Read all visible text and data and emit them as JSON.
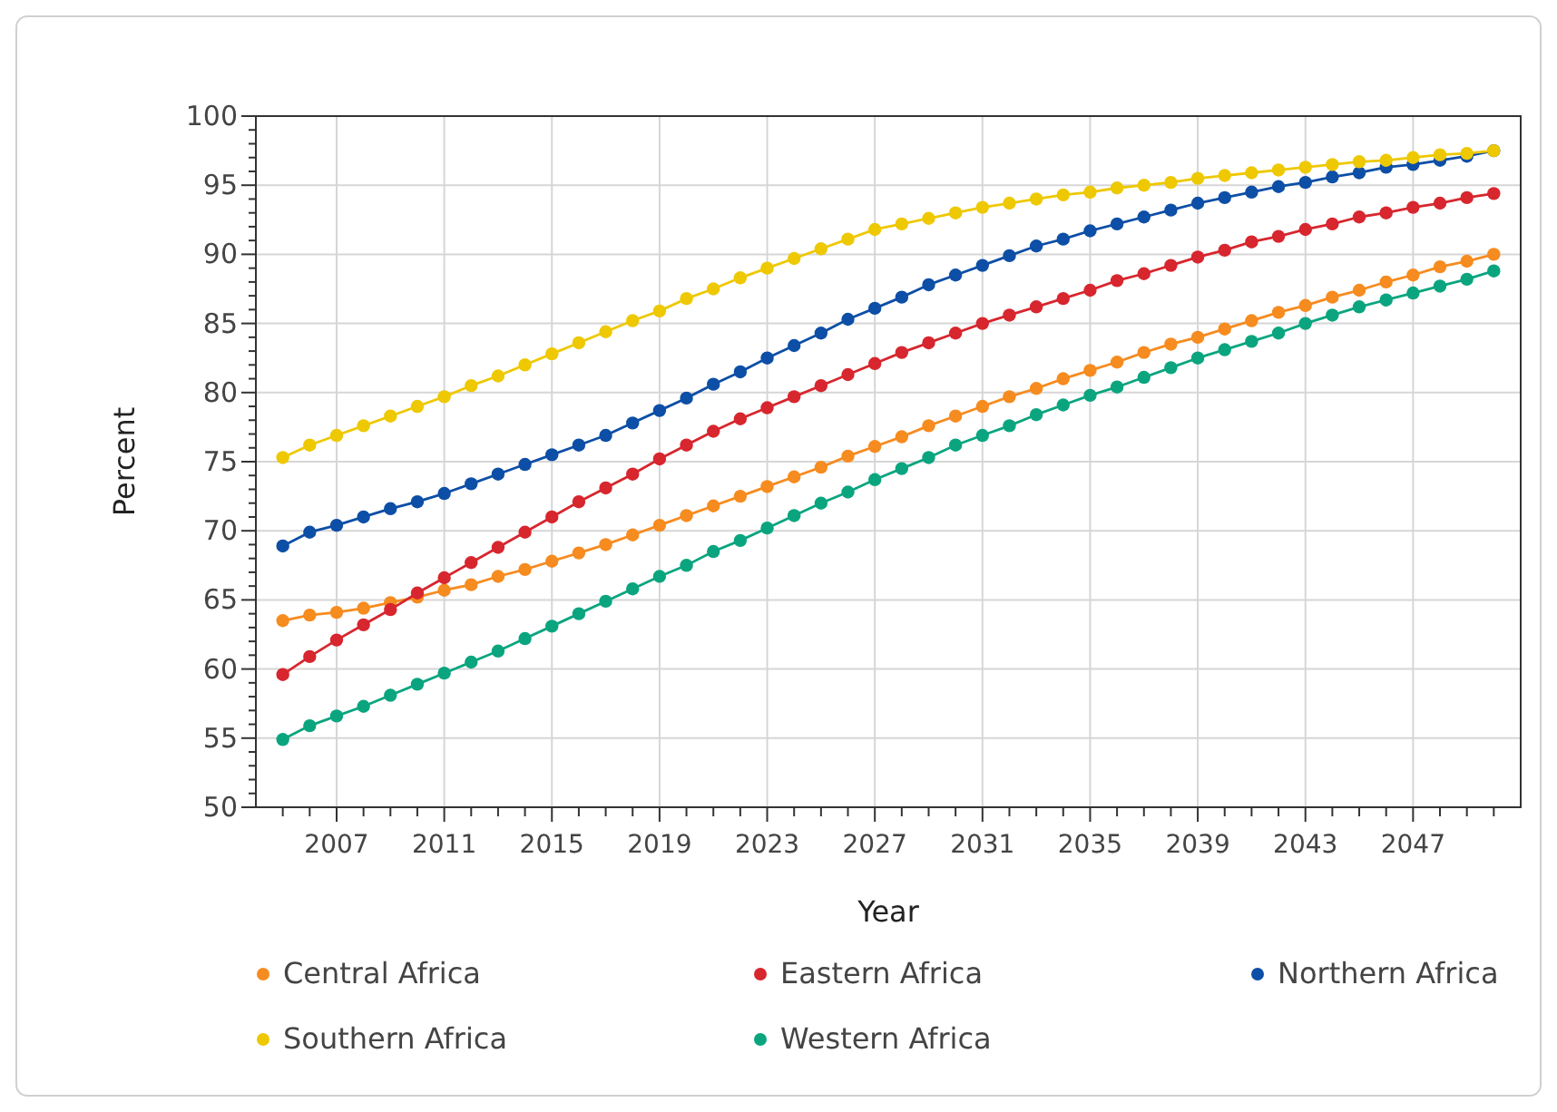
{
  "chart_data": {
    "type": "line",
    "xlabel": "Year",
    "ylabel": "Percent",
    "x": [
      2005,
      2006,
      2007,
      2008,
      2009,
      2010,
      2011,
      2012,
      2013,
      2014,
      2015,
      2016,
      2017,
      2018,
      2019,
      2020,
      2021,
      2022,
      2023,
      2024,
      2025,
      2026,
      2027,
      2028,
      2029,
      2030,
      2031,
      2032,
      2033,
      2034,
      2035,
      2036,
      2037,
      2038,
      2039,
      2040,
      2041,
      2042,
      2043,
      2044,
      2045,
      2046,
      2047,
      2048,
      2049,
      2050
    ],
    "series": [
      {
        "name": "Central Africa",
        "color": "#f68b1f",
        "values": [
          63.5,
          63.9,
          64.1,
          64.4,
          64.8,
          65.2,
          65.7,
          66.1,
          66.7,
          67.2,
          67.8,
          68.4,
          69.0,
          69.7,
          70.4,
          71.1,
          71.8,
          72.5,
          73.2,
          73.9,
          74.6,
          75.4,
          76.1,
          76.8,
          77.6,
          78.3,
          79.0,
          79.7,
          80.3,
          81.0,
          81.6,
          82.2,
          82.9,
          83.5,
          84.0,
          84.6,
          85.2,
          85.8,
          86.3,
          86.9,
          87.4,
          88.0,
          88.5,
          89.1,
          89.5,
          90.0
        ]
      },
      {
        "name": "Eastern Africa",
        "color": "#d7262e",
        "values": [
          59.6,
          60.9,
          62.1,
          63.2,
          64.3,
          65.5,
          66.6,
          67.7,
          68.8,
          69.9,
          71.0,
          72.1,
          73.1,
          74.1,
          75.2,
          76.2,
          77.2,
          78.1,
          78.9,
          79.7,
          80.5,
          81.3,
          82.1,
          82.9,
          83.6,
          84.3,
          85.0,
          85.6,
          86.2,
          86.8,
          87.4,
          88.1,
          88.6,
          89.2,
          89.8,
          90.3,
          90.9,
          91.3,
          91.8,
          92.2,
          92.7,
          93.0,
          93.4,
          93.7,
          94.1,
          94.4
        ]
      },
      {
        "name": "Northern Africa",
        "color": "#0d4ea6",
        "values": [
          68.9,
          69.9,
          70.4,
          71.0,
          71.6,
          72.1,
          72.7,
          73.4,
          74.1,
          74.8,
          75.5,
          76.2,
          76.9,
          77.8,
          78.7,
          79.6,
          80.6,
          81.5,
          82.5,
          83.4,
          84.3,
          85.3,
          86.1,
          86.9,
          87.8,
          88.5,
          89.2,
          89.9,
          90.6,
          91.1,
          91.7,
          92.2,
          92.7,
          93.2,
          93.7,
          94.1,
          94.5,
          94.9,
          95.2,
          95.6,
          95.9,
          96.3,
          96.5,
          96.8,
          97.1,
          97.5
        ]
      },
      {
        "name": "Southern Africa",
        "color": "#eec800",
        "values": [
          75.3,
          76.2,
          76.9,
          77.6,
          78.3,
          79.0,
          79.7,
          80.5,
          81.2,
          82.0,
          82.8,
          83.6,
          84.4,
          85.2,
          85.9,
          86.8,
          87.5,
          88.3,
          89.0,
          89.7,
          90.4,
          91.1,
          91.8,
          92.2,
          92.6,
          93.0,
          93.4,
          93.7,
          94.0,
          94.3,
          94.5,
          94.8,
          95.0,
          95.2,
          95.5,
          95.7,
          95.9,
          96.1,
          96.3,
          96.5,
          96.7,
          96.8,
          97.0,
          97.2,
          97.3,
          97.5
        ]
      },
      {
        "name": "Western Africa",
        "color": "#0aa57f",
        "values": [
          54.9,
          55.9,
          56.6,
          57.3,
          58.1,
          58.9,
          59.7,
          60.5,
          61.3,
          62.2,
          63.1,
          64.0,
          64.9,
          65.8,
          66.7,
          67.5,
          68.5,
          69.3,
          70.2,
          71.1,
          72.0,
          72.8,
          73.7,
          74.5,
          75.3,
          76.2,
          76.9,
          77.6,
          78.4,
          79.1,
          79.8,
          80.4,
          81.1,
          81.8,
          82.5,
          83.1,
          83.7,
          84.3,
          85.0,
          85.6,
          86.2,
          86.7,
          87.2,
          87.7,
          88.2,
          88.8
        ]
      }
    ],
    "xlim": [
      2004,
      2051
    ],
    "xticks": [
      {
        "value": 2005,
        "label": null
      },
      {
        "value": 2006,
        "label": null
      },
      2007,
      {
        "value": 2008,
        "label": null
      },
      {
        "value": 2009,
        "label": null
      },
      {
        "value": 2010,
        "label": null
      },
      2011,
      {
        "value": 2012,
        "label": null
      },
      {
        "value": 2013,
        "label": null
      },
      {
        "value": 2014,
        "label": null
      },
      2015,
      {
        "value": 2016,
        "label": null
      },
      {
        "value": 2017,
        "label": null
      },
      {
        "value": 2018,
        "label": null
      },
      2019,
      {
        "value": 2020,
        "label": null
      },
      {
        "value": 2021,
        "label": null
      },
      {
        "value": 2022,
        "label": null
      },
      2023,
      {
        "value": 2024,
        "label": null
      },
      {
        "value": 2025,
        "label": null
      },
      {
        "value": 2026,
        "label": null
      },
      2027,
      {
        "value": 2028,
        "label": null
      },
      {
        "value": 2029,
        "label": null
      },
      {
        "value": 2030,
        "label": null
      },
      2031,
      {
        "value": 2032,
        "label": null
      },
      {
        "value": 2033,
        "label": null
      },
      {
        "value": 2034,
        "label": null
      },
      2035,
      {
        "value": 2036,
        "label": null
      },
      {
        "value": 2037,
        "label": null
      },
      {
        "value": 2038,
        "label": null
      },
      2039,
      {
        "value": 2040,
        "label": null
      },
      {
        "value": 2041,
        "label": null
      },
      {
        "value": 2042,
        "label": null
      },
      2043,
      {
        "value": 2044,
        "label": null
      },
      {
        "value": 2045,
        "label": null
      },
      {
        "value": 2046,
        "label": null
      },
      2047,
      {
        "value": 2048,
        "label": null
      },
      {
        "value": 2049,
        "label": null
      },
      {
        "value": 2050,
        "label": null
      }
    ],
    "ylim": [
      50,
      100
    ],
    "yticks": [
      50,
      {
        "value": 51,
        "label": null
      },
      {
        "value": 52,
        "label": null
      },
      {
        "value": 53,
        "label": null
      },
      {
        "value": 54,
        "label": null
      },
      55,
      {
        "value": 56,
        "label": null
      },
      {
        "value": 57,
        "label": null
      },
      {
        "value": 58,
        "label": null
      },
      {
        "value": 59,
        "label": null
      },
      60,
      {
        "value": 61,
        "label": null
      },
      {
        "value": 62,
        "label": null
      },
      {
        "value": 63,
        "label": null
      },
      {
        "value": 64,
        "label": null
      },
      65,
      {
        "value": 66,
        "label": null
      },
      {
        "value": 67,
        "label": null
      },
      {
        "value": 68,
        "label": null
      },
      {
        "value": 69,
        "label": null
      },
      70,
      {
        "value": 71,
        "label": null
      },
      {
        "value": 72,
        "label": null
      },
      {
        "value": 73,
        "label": null
      },
      {
        "value": 74,
        "label": null
      },
      75,
      {
        "value": 76,
        "label": null
      },
      {
        "value": 77,
        "label": null
      },
      {
        "value": 78,
        "label": null
      },
      {
        "value": 79,
        "label": null
      },
      80,
      {
        "value": 81,
        "label": null
      },
      {
        "value": 82,
        "label": null
      },
      {
        "value": 83,
        "label": null
      },
      {
        "value": 84,
        "label": null
      },
      85,
      {
        "value": 86,
        "label": null
      },
      {
        "value": 87,
        "label": null
      },
      {
        "value": 88,
        "label": null
      },
      {
        "value": 89,
        "label": null
      },
      90,
      {
        "value": 91,
        "label": null
      },
      {
        "value": 92,
        "label": null
      },
      {
        "value": 93,
        "label": null
      },
      {
        "value": 94,
        "label": null
      },
      95,
      {
        "value": 96,
        "label": null
      },
      {
        "value": 97,
        "label": null
      },
      {
        "value": 98,
        "label": null
      },
      {
        "value": 99,
        "label": null
      },
      100
    ],
    "grid": true,
    "legend": "bottom",
    "marker": "circle",
    "line_style": "solid"
  }
}
